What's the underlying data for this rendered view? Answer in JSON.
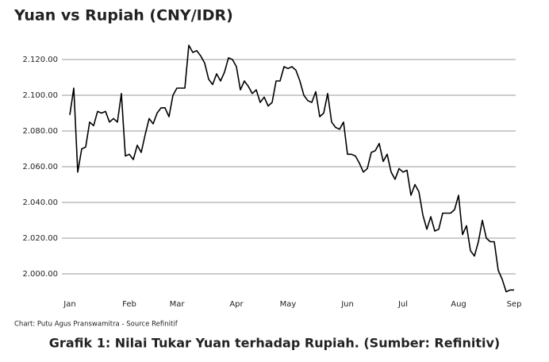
{
  "chart_data": {
    "type": "line",
    "title": "Yuan vs Rupiah (CNY/IDR)",
    "source": "Chart: Putu Agus Pranswamitra - Source Refinitif",
    "caption": "Grafik 1: Nilai Tukar Yuan terhadap Rupiah. (Sumber: Refinitiv)",
    "categories": [
      "Jan",
      null,
      null,
      null,
      null,
      null,
      null,
      null,
      null,
      null,
      null,
      null,
      null,
      null,
      null,
      "Feb",
      null,
      null,
      null,
      null,
      null,
      null,
      null,
      null,
      null,
      null,
      null,
      "Mar",
      null,
      null,
      null,
      null,
      null,
      null,
      null,
      null,
      null,
      null,
      null,
      null,
      null,
      null,
      "Apr",
      null,
      null,
      null,
      null,
      null,
      null,
      null,
      null,
      null,
      null,
      null,
      null,
      "May",
      null,
      null,
      null,
      null,
      null,
      null,
      null,
      null,
      null,
      null,
      null,
      null,
      null,
      null,
      "Jun",
      null,
      null,
      null,
      null,
      null,
      null,
      null,
      null,
      null,
      null,
      null,
      null,
      null,
      "Jul",
      null,
      null,
      null,
      null,
      null,
      null,
      null,
      null,
      null,
      null,
      null,
      null,
      null,
      "Aug",
      null,
      null,
      null,
      null,
      null,
      null,
      null,
      null,
      null,
      null,
      null,
      null,
      null,
      "Sep"
    ],
    "series": [
      {
        "color": "#000000",
        "values": [
          2089,
          2104,
          2057,
          2070,
          2071,
          2085,
          2083,
          2091,
          2090,
          2091,
          2085,
          2087,
          2085,
          2101,
          2066,
          2067,
          2064,
          2072,
          2068,
          2078,
          2087,
          2084,
          2090,
          2093,
          2093,
          2088,
          2100,
          2104,
          2104,
          2104,
          2128,
          2124,
          2125,
          2122,
          2118,
          2109,
          2106,
          2112,
          2108,
          2113,
          2121,
          2120,
          2116,
          2103,
          2108,
          2105,
          2101,
          2103,
          2096,
          2099,
          2094,
          2096,
          2108,
          2108,
          2116,
          2115,
          2116,
          2114,
          2108,
          2100,
          2097,
          2096,
          2102,
          2088,
          2090,
          2101,
          2085,
          2082,
          2081,
          2085,
          2067,
          2067,
          2066,
          2062,
          2057,
          2059,
          2068,
          2069,
          2073,
          2063,
          2067,
          2057,
          2053,
          2059,
          2057,
          2058,
          2044,
          2050,
          2046,
          2033,
          2025,
          2032,
          2024,
          2025,
          2034,
          2034,
          2034,
          2036,
          2044,
          2022,
          2027,
          2013,
          2010,
          2018,
          2030,
          2020,
          2018,
          2018,
          2002,
          1997,
          1990,
          1991,
          1991
        ]
      }
    ],
    "ylim": [
      1990,
      2129
    ],
    "yticks": [
      {
        "value": 2000,
        "label": "2.000.00"
      },
      {
        "value": 2020,
        "label": "2.020.00"
      },
      {
        "value": 2040,
        "label": "2.040.00"
      },
      {
        "value": 2060,
        "label": "2.060.00"
      },
      {
        "value": 2080,
        "label": "2.080.00"
      },
      {
        "value": 2100,
        "label": "2.100.00"
      },
      {
        "value": 2120,
        "label": "2.120.00"
      }
    ],
    "grid": true
  }
}
